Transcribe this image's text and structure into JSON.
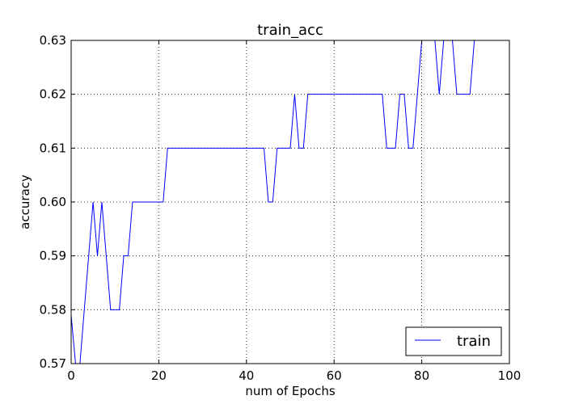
{
  "chart_data": {
    "type": "line",
    "title": "train_acc",
    "xlabel": "num of Epochs",
    "ylabel": "accuracy",
    "xlim": [
      0,
      100
    ],
    "ylim": [
      0.57,
      0.63
    ],
    "xticks": [
      0,
      20,
      40,
      60,
      80,
      100
    ],
    "xtick_labels": [
      "0",
      "20",
      "40",
      "60",
      "80",
      "100"
    ],
    "yticks": [
      0.57,
      0.58,
      0.59,
      0.6,
      0.61,
      0.62,
      0.63
    ],
    "ytick_labels": [
      "0.57",
      "0.58",
      "0.59",
      "0.60",
      "0.61",
      "0.62",
      "0.63"
    ],
    "grid": true,
    "legend_position": "lower-right",
    "series": [
      {
        "name": "train",
        "color": "#0000ff",
        "x": [
          0,
          1,
          2,
          3,
          4,
          5,
          6,
          7,
          8,
          9,
          10,
          11,
          12,
          13,
          14,
          15,
          16,
          17,
          18,
          19,
          20,
          21,
          22,
          23,
          24,
          25,
          26,
          27,
          28,
          29,
          30,
          31,
          32,
          33,
          34,
          35,
          36,
          37,
          38,
          39,
          40,
          41,
          42,
          43,
          44,
          45,
          46,
          47,
          48,
          49,
          50,
          51,
          52,
          53,
          54,
          55,
          56,
          57,
          58,
          59,
          60,
          61,
          62,
          63,
          64,
          65,
          66,
          67,
          68,
          69,
          70,
          71,
          72,
          73,
          74,
          75,
          76,
          77,
          78,
          79,
          80,
          81,
          82,
          83,
          84,
          85,
          86,
          87,
          88,
          89,
          90,
          91,
          92
        ],
        "y": [
          0.579,
          0.57,
          0.57,
          0.58,
          0.59,
          0.6,
          0.59,
          0.6,
          0.59,
          0.58,
          0.58,
          0.58,
          0.59,
          0.59,
          0.6,
          0.6,
          0.6,
          0.6,
          0.6,
          0.6,
          0.6,
          0.6,
          0.61,
          0.61,
          0.61,
          0.61,
          0.61,
          0.61,
          0.61,
          0.61,
          0.61,
          0.61,
          0.61,
          0.61,
          0.61,
          0.61,
          0.61,
          0.61,
          0.61,
          0.61,
          0.61,
          0.61,
          0.61,
          0.61,
          0.61,
          0.6,
          0.6,
          0.61,
          0.61,
          0.61,
          0.61,
          0.62,
          0.61,
          0.61,
          0.62,
          0.62,
          0.62,
          0.62,
          0.62,
          0.62,
          0.62,
          0.62,
          0.62,
          0.62,
          0.62,
          0.62,
          0.62,
          0.62,
          0.62,
          0.62,
          0.62,
          0.62,
          0.61,
          0.61,
          0.61,
          0.62,
          0.62,
          0.61,
          0.61,
          0.62,
          0.63,
          0.63,
          0.63,
          0.63,
          0.62,
          0.63,
          0.63,
          0.63,
          0.62,
          0.62,
          0.62,
          0.62,
          0.63
        ]
      }
    ]
  }
}
